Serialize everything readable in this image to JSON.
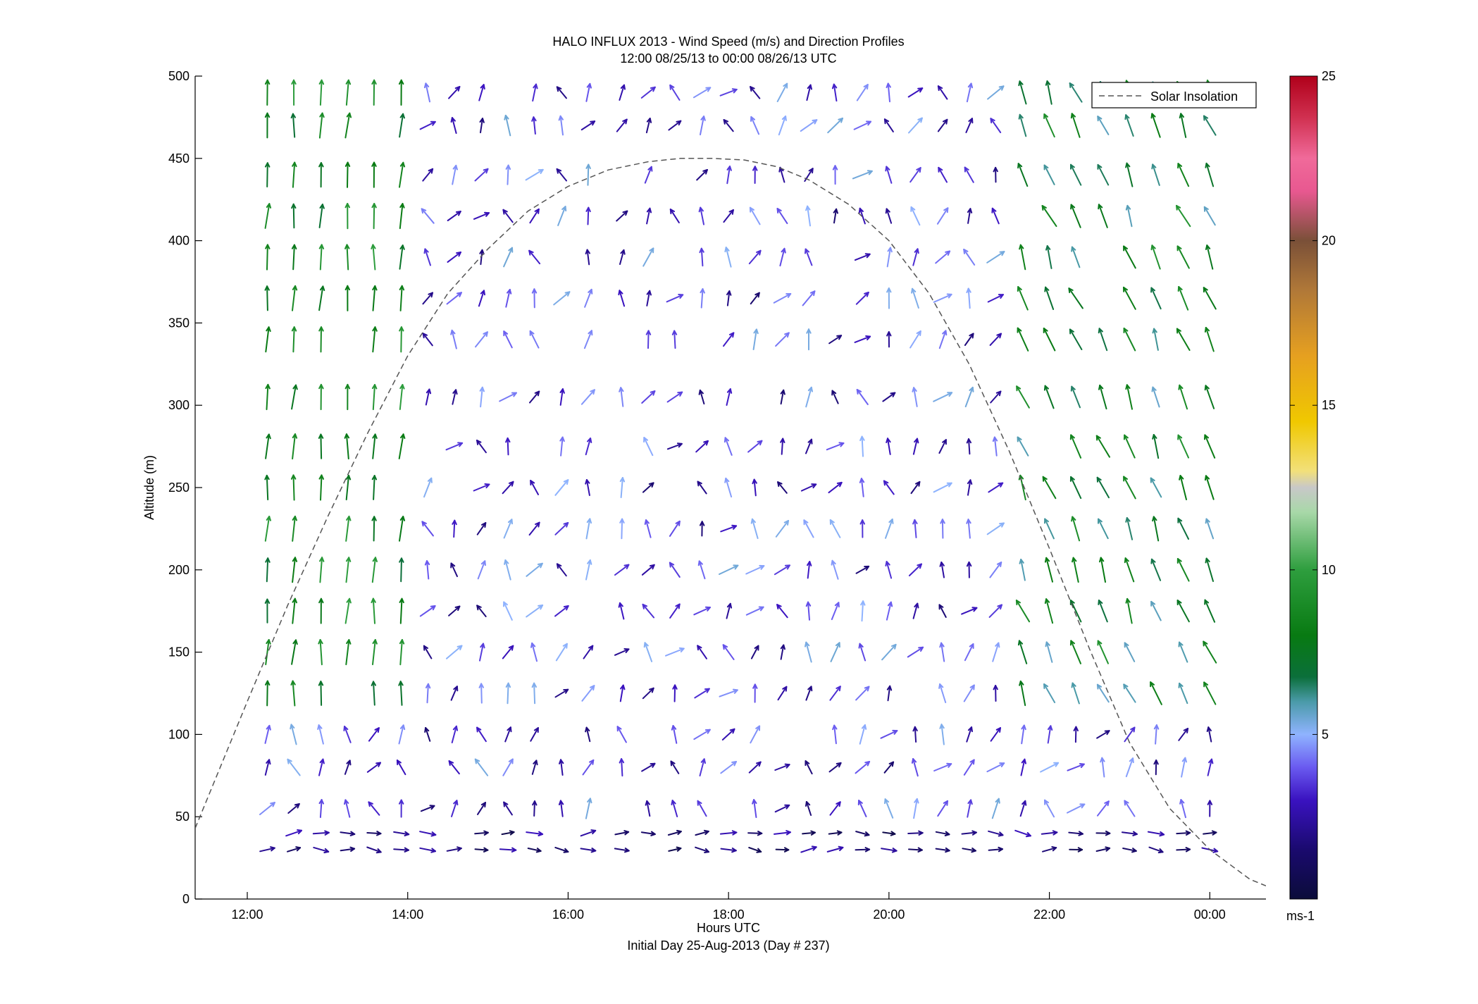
{
  "chart_data": {
    "type": "quiver",
    "title": "HALO INFLUX 2013 - Wind Speed (m/s) and Direction Profiles",
    "subtitle": "12:00 08/25/13 to 00:00 08/26/13  UTC",
    "xlabel": "Hours UTC",
    "xlabel2": "Initial Day 25-Aug-2013 (Day # 237)",
    "ylabel": "Altitude (m)",
    "xlim": [
      11.35,
      24.7
    ],
    "ylim": [
      0,
      500
    ],
    "x_ticks": [
      12,
      14,
      16,
      18,
      20,
      22,
      24
    ],
    "x_tick_labels": [
      "12:00",
      "14:00",
      "16:00",
      "18:00",
      "20:00",
      "22:00",
      "00:00"
    ],
    "y_ticks": [
      0,
      50,
      100,
      150,
      200,
      250,
      300,
      350,
      400,
      450,
      500
    ],
    "y_tick_labels": [
      "0",
      "50",
      "100",
      "150",
      "200",
      "250",
      "300",
      "350",
      "400",
      "450",
      "500"
    ],
    "grid": false,
    "legend": {
      "location": "top-right",
      "entries": [
        "Solar Insolation"
      ]
    },
    "series": [
      {
        "name": "Solar Insolation",
        "style": "dashed",
        "color": "#555555",
        "x": [
          11.35,
          12.0,
          12.5,
          13.0,
          13.5,
          14.0,
          14.5,
          15.0,
          15.5,
          16.0,
          16.5,
          17.0,
          17.4,
          17.8,
          18.2,
          18.6,
          19.0,
          19.5,
          20.0,
          20.5,
          21.0,
          21.5,
          22.0,
          22.5,
          23.0,
          23.5,
          24.0,
          24.5,
          24.7
        ],
        "y": [
          43,
          120,
          178,
          232,
          283,
          330,
          368,
          395,
          418,
          433,
          443,
          448,
          450,
          450,
          449,
          445,
          437,
          422,
          400,
          368,
          325,
          272,
          213,
          152,
          95,
          55,
          30,
          12,
          8
        ]
      }
    ],
    "wind": {
      "times": [
        12.25,
        12.58,
        12.92,
        13.25,
        13.58,
        13.92,
        14.25,
        14.58,
        14.92,
        15.25,
        15.58,
        15.92,
        16.25,
        16.67,
        17.0,
        17.33,
        17.67,
        18.0,
        18.33,
        18.67,
        19.0,
        19.33,
        19.67,
        20.0,
        20.33,
        20.67,
        21.0,
        21.33,
        21.67,
        22.0,
        22.33,
        22.67,
        23.0,
        23.33,
        23.67,
        24.0
      ],
      "altitudes": [
        30,
        40,
        55,
        80,
        100,
        125,
        150,
        175,
        200,
        225,
        250,
        275,
        305,
        340,
        365,
        390,
        415,
        440,
        470,
        490
      ],
      "colorbar": {
        "min": 0,
        "max": 25,
        "ticks": [
          5,
          10,
          15,
          20,
          25
        ],
        "unit_label": "ms-1"
      }
    }
  }
}
